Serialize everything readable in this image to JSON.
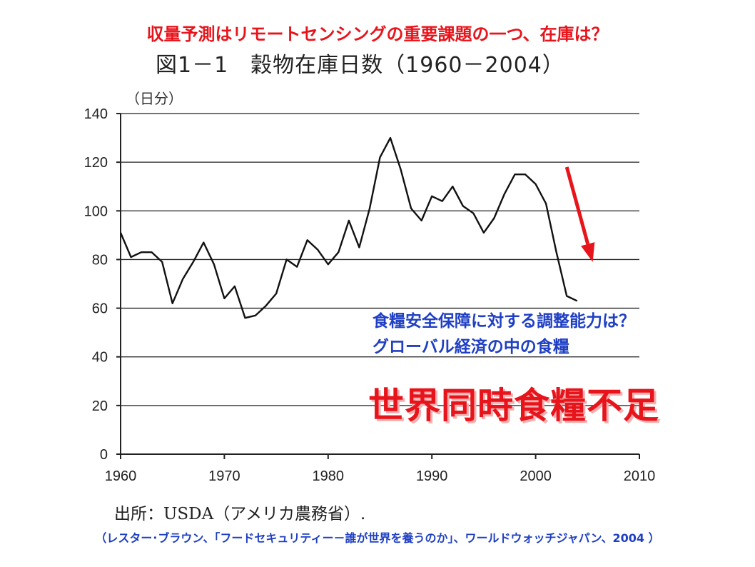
{
  "header": {
    "top_title": "収量予測はリモートセンシングの重要課題の一つ、在庫は？",
    "figure_title": "図1－1　穀物在庫日数（1960－2004）",
    "unit_label": "（日分）"
  },
  "annotations": {
    "line1": "食糧安全保障に対する調整能力は？",
    "line2": "グローバル経済の中の食糧",
    "big_red": "世界同時食糧不足"
  },
  "source": "出所：USDA（アメリカ農務省）.",
  "citation": "（レスター･ブラウン、「フードセキュリティー－誰が世界を養うのか」、ワールドウォッチジャパン、2004 ）",
  "colors": {
    "red": "#e8141b",
    "blue": "#1f3fc4",
    "line": "#111111"
  },
  "chart_data": {
    "type": "line",
    "title": "図1－1　穀物在庫日数（1960－2004）",
    "ylabel": "（日分）",
    "xlabel": "",
    "xlim": [
      1960,
      2010
    ],
    "ylim": [
      0,
      140
    ],
    "x_ticks": [
      1960,
      1970,
      1980,
      1990,
      2000,
      2010
    ],
    "y_ticks": [
      0,
      20,
      40,
      60,
      80,
      100,
      120,
      140
    ],
    "grid": "horizontal",
    "series": [
      {
        "x": [
          1960,
          1961,
          1962,
          1963,
          1964,
          1965,
          1966,
          1967,
          1968,
          1969,
          1970,
          1971,
          1972,
          1973,
          1974,
          1975,
          1976,
          1977,
          1978,
          1979,
          1980,
          1981,
          1982,
          1983,
          1984,
          1985,
          1986,
          1987,
          1988,
          1989,
          1990,
          1991,
          1992,
          1993,
          1994,
          1995,
          1996,
          1997,
          1998,
          1999,
          2000,
          2001,
          2002,
          2003,
          2004
        ],
        "values": [
          91,
          81,
          83,
          83,
          79,
          62,
          72,
          79,
          87,
          78,
          64,
          69,
          56,
          57,
          61,
          66,
          80,
          77,
          88,
          84,
          78,
          83,
          96,
          85,
          101,
          122,
          130,
          117,
          101,
          96,
          106,
          104,
          110,
          102,
          99,
          91,
          97,
          107,
          115,
          115,
          111,
          103,
          83,
          65,
          63
        ]
      }
    ],
    "annotation_arrow": {
      "from": [
        2003,
        118
      ],
      "to": [
        2005.5,
        79
      ]
    }
  }
}
